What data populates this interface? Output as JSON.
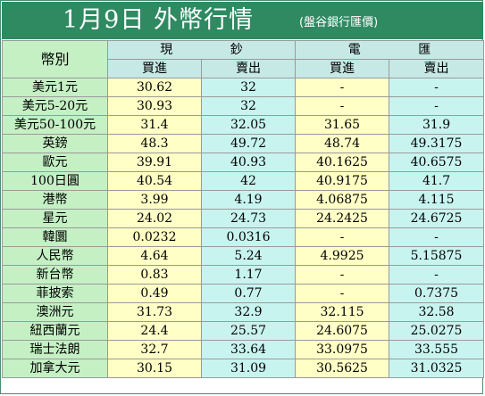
{
  "title": {
    "main": "1月9日 外幣行情",
    "source": "(盤谷銀行匯價)"
  },
  "table": {
    "currency_header": "幣別",
    "groups": [
      "現 鈔",
      "電 匯"
    ],
    "subheaders": [
      "買進",
      "賣出",
      "買進",
      "賣出"
    ],
    "rows": [
      {
        "name": "美元1元",
        "cash_buy": "30.62",
        "cash_sell": "32",
        "tt_buy": "-",
        "tt_sell": "-"
      },
      {
        "name": "美元5-20元",
        "cash_buy": "30.93",
        "cash_sell": "32",
        "tt_buy": "-",
        "tt_sell": "-"
      },
      {
        "name": "美元50-100元",
        "cash_buy": "31.4",
        "cash_sell": "32.05",
        "tt_buy": "31.65",
        "tt_sell": "31.9"
      },
      {
        "name": "英鎊",
        "cash_buy": "48.3",
        "cash_sell": "49.72",
        "tt_buy": "48.74",
        "tt_sell": "49.3175"
      },
      {
        "name": "歐元",
        "cash_buy": "39.91",
        "cash_sell": "40.93",
        "tt_buy": "40.1625",
        "tt_sell": "40.6575"
      },
      {
        "name": "100日圓",
        "cash_buy": "40.54",
        "cash_sell": "42",
        "tt_buy": "40.9175",
        "tt_sell": "41.7"
      },
      {
        "name": "港幣",
        "cash_buy": "3.99",
        "cash_sell": "4.19",
        "tt_buy": "4.06875",
        "tt_sell": "4.115"
      },
      {
        "name": "星元",
        "cash_buy": "24.02",
        "cash_sell": "24.73",
        "tt_buy": "24.2425",
        "tt_sell": "24.6725"
      },
      {
        "name": "韓圜",
        "cash_buy": "0.0232",
        "cash_sell": "0.0316",
        "tt_buy": "-",
        "tt_sell": "-"
      },
      {
        "name": "人民幣",
        "cash_buy": "4.64",
        "cash_sell": "5.24",
        "tt_buy": "4.9925",
        "tt_sell": "5.15875"
      },
      {
        "name": "新台幣",
        "cash_buy": "0.83",
        "cash_sell": "1.17",
        "tt_buy": "-",
        "tt_sell": "-"
      },
      {
        "name": "菲披索",
        "cash_buy": "0.49",
        "cash_sell": "0.77",
        "tt_buy": "-",
        "tt_sell": "0.7375"
      },
      {
        "name": "澳洲元",
        "cash_buy": "31.73",
        "cash_sell": "32.9",
        "tt_buy": "32.115",
        "tt_sell": "32.58"
      },
      {
        "name": "紐西蘭元",
        "cash_buy": "24.4",
        "cash_sell": "25.57",
        "tt_buy": "24.6075",
        "tt_sell": "25.0275"
      },
      {
        "name": "瑞士法朗",
        "cash_buy": "32.7",
        "cash_sell": "33.64",
        "tt_buy": "33.0975",
        "tt_sell": "33.555"
      },
      {
        "name": "加拿大元",
        "cash_buy": "30.15",
        "cash_sell": "31.09",
        "tt_buy": "30.5625",
        "tt_sell": "31.0325"
      }
    ]
  },
  "colors": {
    "title_bg": "#2f8a62",
    "header_bg": "#c6e9e6",
    "name_col_bg": "#c4f0c4",
    "buy_col_bg": "#ffffc6",
    "sell_col_bg": "#c8f4f0"
  }
}
